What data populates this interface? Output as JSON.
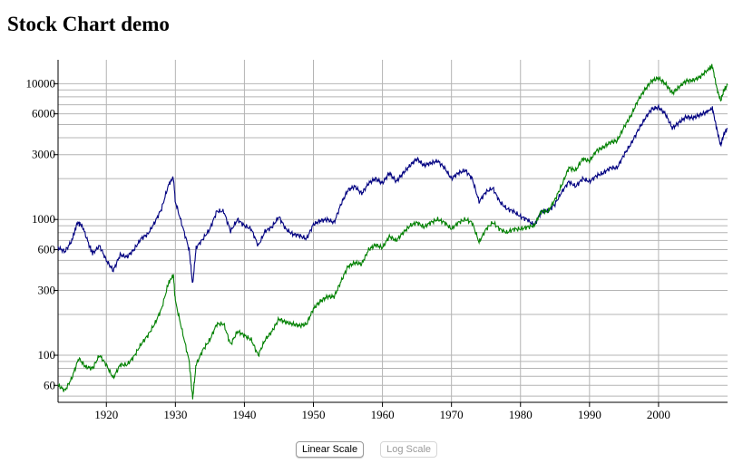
{
  "title": "Stock Chart demo",
  "buttons": {
    "linear": "Linear Scale",
    "log": "Log Scale",
    "active": "log"
  },
  "chart_data": {
    "type": "line",
    "yscale": "log",
    "xlim": [
      1913,
      2010
    ],
    "ylim": [
      45,
      15000
    ],
    "grid": true,
    "x_ticks": [
      1920,
      1930,
      1940,
      1950,
      1960,
      1970,
      1980,
      1990,
      2000
    ],
    "y_ticks": [
      60,
      100,
      300,
      600,
      1000,
      3000,
      6000,
      10000
    ],
    "y_gridlines": [
      50,
      60,
      70,
      80,
      90,
      100,
      200,
      300,
      400,
      500,
      600,
      700,
      800,
      900,
      1000,
      2000,
      3000,
      4000,
      5000,
      6000,
      7000,
      8000,
      9000,
      10000
    ],
    "series": [
      {
        "color": "#000080",
        "points": [
          [
            1913,
            620
          ],
          [
            1914,
            580
          ],
          [
            1915,
            700
          ],
          [
            1915.8,
            950
          ],
          [
            1916.5,
            900
          ],
          [
            1917.5,
            650
          ],
          [
            1918,
            560
          ],
          [
            1919,
            640
          ],
          [
            1920,
            500
          ],
          [
            1921,
            420
          ],
          [
            1922,
            550
          ],
          [
            1923,
            530
          ],
          [
            1924,
            600
          ],
          [
            1925,
            720
          ],
          [
            1926,
            780
          ],
          [
            1927,
            950
          ],
          [
            1928,
            1200
          ],
          [
            1929,
            1800
          ],
          [
            1929.7,
            2050
          ],
          [
            1930,
            1350
          ],
          [
            1931,
            900
          ],
          [
            1932,
            600
          ],
          [
            1932.5,
            330
          ],
          [
            1933,
            620
          ],
          [
            1934,
            720
          ],
          [
            1935,
            850
          ],
          [
            1936,
            1150
          ],
          [
            1937,
            1150
          ],
          [
            1938,
            820
          ],
          [
            1939,
            1000
          ],
          [
            1940,
            900
          ],
          [
            1941,
            850
          ],
          [
            1942,
            640
          ],
          [
            1943,
            820
          ],
          [
            1944,
            880
          ],
          [
            1945,
            1050
          ],
          [
            1946,
            850
          ],
          [
            1947,
            780
          ],
          [
            1948,
            760
          ],
          [
            1949,
            720
          ],
          [
            1950,
            920
          ],
          [
            1951,
            980
          ],
          [
            1952,
            1000
          ],
          [
            1953,
            950
          ],
          [
            1954,
            1300
          ],
          [
            1955,
            1650
          ],
          [
            1956,
            1750
          ],
          [
            1957,
            1550
          ],
          [
            1958,
            1850
          ],
          [
            1959,
            2000
          ],
          [
            1960,
            1850
          ],
          [
            1961,
            2200
          ],
          [
            1962,
            1900
          ],
          [
            1963,
            2200
          ],
          [
            1964,
            2500
          ],
          [
            1965,
            2800
          ],
          [
            1966,
            2500
          ],
          [
            1967,
            2600
          ],
          [
            1968,
            2700
          ],
          [
            1969,
            2400
          ],
          [
            1970,
            2000
          ],
          [
            1971,
            2200
          ],
          [
            1972,
            2300
          ],
          [
            1973,
            2000
          ],
          [
            1974,
            1350
          ],
          [
            1975,
            1600
          ],
          [
            1976,
            1700
          ],
          [
            1977,
            1350
          ],
          [
            1978,
            1200
          ],
          [
            1979,
            1150
          ],
          [
            1980,
            1050
          ],
          [
            1981,
            1000
          ],
          [
            1982,
            900
          ],
          [
            1983,
            1150
          ],
          [
            1984,
            1150
          ],
          [
            1985,
            1300
          ],
          [
            1986,
            1600
          ],
          [
            1987,
            1900
          ],
          [
            1988,
            1750
          ],
          [
            1989,
            2000
          ],
          [
            1990,
            1900
          ],
          [
            1991,
            2100
          ],
          [
            1992,
            2200
          ],
          [
            1993,
            2400
          ],
          [
            1994,
            2400
          ],
          [
            1995,
            3000
          ],
          [
            1996,
            3600
          ],
          [
            1997,
            4500
          ],
          [
            1998,
            5500
          ],
          [
            1999,
            6500
          ],
          [
            2000,
            6700
          ],
          [
            2001,
            6000
          ],
          [
            2002,
            4700
          ],
          [
            2003,
            5200
          ],
          [
            2004,
            5700
          ],
          [
            2005,
            5600
          ],
          [
            2006,
            5900
          ],
          [
            2007,
            6200
          ],
          [
            2007.8,
            6600
          ],
          [
            2008.5,
            4500
          ],
          [
            2009,
            3500
          ],
          [
            2009.5,
            4300
          ],
          [
            2010,
            4700
          ]
        ]
      },
      {
        "color": "#008000",
        "points": [
          [
            1913,
            60
          ],
          [
            1914,
            55
          ],
          [
            1915,
            68
          ],
          [
            1916,
            95
          ],
          [
            1917,
            82
          ],
          [
            1918,
            80
          ],
          [
            1919,
            100
          ],
          [
            1920,
            85
          ],
          [
            1921,
            68
          ],
          [
            1922,
            85
          ],
          [
            1923,
            85
          ],
          [
            1924,
            98
          ],
          [
            1925,
            120
          ],
          [
            1926,
            140
          ],
          [
            1927,
            170
          ],
          [
            1928,
            220
          ],
          [
            1929,
            340
          ],
          [
            1929.7,
            390
          ],
          [
            1930,
            250
          ],
          [
            1931,
            150
          ],
          [
            1932,
            90
          ],
          [
            1932.5,
            48
          ],
          [
            1933,
            85
          ],
          [
            1934,
            110
          ],
          [
            1935,
            130
          ],
          [
            1936,
            170
          ],
          [
            1937,
            170
          ],
          [
            1938,
            120
          ],
          [
            1939,
            150
          ],
          [
            1940,
            140
          ],
          [
            1941,
            130
          ],
          [
            1942,
            100
          ],
          [
            1943,
            130
          ],
          [
            1944,
            150
          ],
          [
            1945,
            185
          ],
          [
            1946,
            175
          ],
          [
            1947,
            170
          ],
          [
            1948,
            165
          ],
          [
            1949,
            170
          ],
          [
            1950,
            220
          ],
          [
            1951,
            250
          ],
          [
            1952,
            270
          ],
          [
            1953,
            270
          ],
          [
            1954,
            350
          ],
          [
            1955,
            450
          ],
          [
            1956,
            480
          ],
          [
            1957,
            470
          ],
          [
            1958,
            600
          ],
          [
            1959,
            650
          ],
          [
            1960,
            620
          ],
          [
            1961,
            750
          ],
          [
            1962,
            700
          ],
          [
            1963,
            800
          ],
          [
            1964,
            900
          ],
          [
            1965,
            950
          ],
          [
            1966,
            880
          ],
          [
            1967,
            950
          ],
          [
            1968,
            1000
          ],
          [
            1969,
            950
          ],
          [
            1970,
            850
          ],
          [
            1971,
            950
          ],
          [
            1972,
            1000
          ],
          [
            1973,
            950
          ],
          [
            1974,
            680
          ],
          [
            1975,
            850
          ],
          [
            1976,
            950
          ],
          [
            1977,
            850
          ],
          [
            1978,
            800
          ],
          [
            1979,
            850
          ],
          [
            1980,
            850
          ],
          [
            1981,
            880
          ],
          [
            1982,
            900
          ],
          [
            1983,
            1150
          ],
          [
            1984,
            1150
          ],
          [
            1985,
            1400
          ],
          [
            1986,
            1800
          ],
          [
            1987,
            2400
          ],
          [
            1988,
            2300
          ],
          [
            1989,
            2800
          ],
          [
            1990,
            2700
          ],
          [
            1991,
            3200
          ],
          [
            1992,
            3400
          ],
          [
            1993,
            3700
          ],
          [
            1994,
            3800
          ],
          [
            1995,
            4800
          ],
          [
            1996,
            5800
          ],
          [
            1997,
            7500
          ],
          [
            1998,
            9000
          ],
          [
            1999,
            10500
          ],
          [
            2000,
            11000
          ],
          [
            2001,
            10000
          ],
          [
            2002,
            8500
          ],
          [
            2003,
            9500
          ],
          [
            2004,
            10500
          ],
          [
            2005,
            10600
          ],
          [
            2006,
            11200
          ],
          [
            2007,
            12500
          ],
          [
            2007.8,
            13500
          ],
          [
            2008.5,
            9000
          ],
          [
            2009,
            7500
          ],
          [
            2009.5,
            9000
          ],
          [
            2010,
            9800
          ]
        ]
      }
    ]
  }
}
